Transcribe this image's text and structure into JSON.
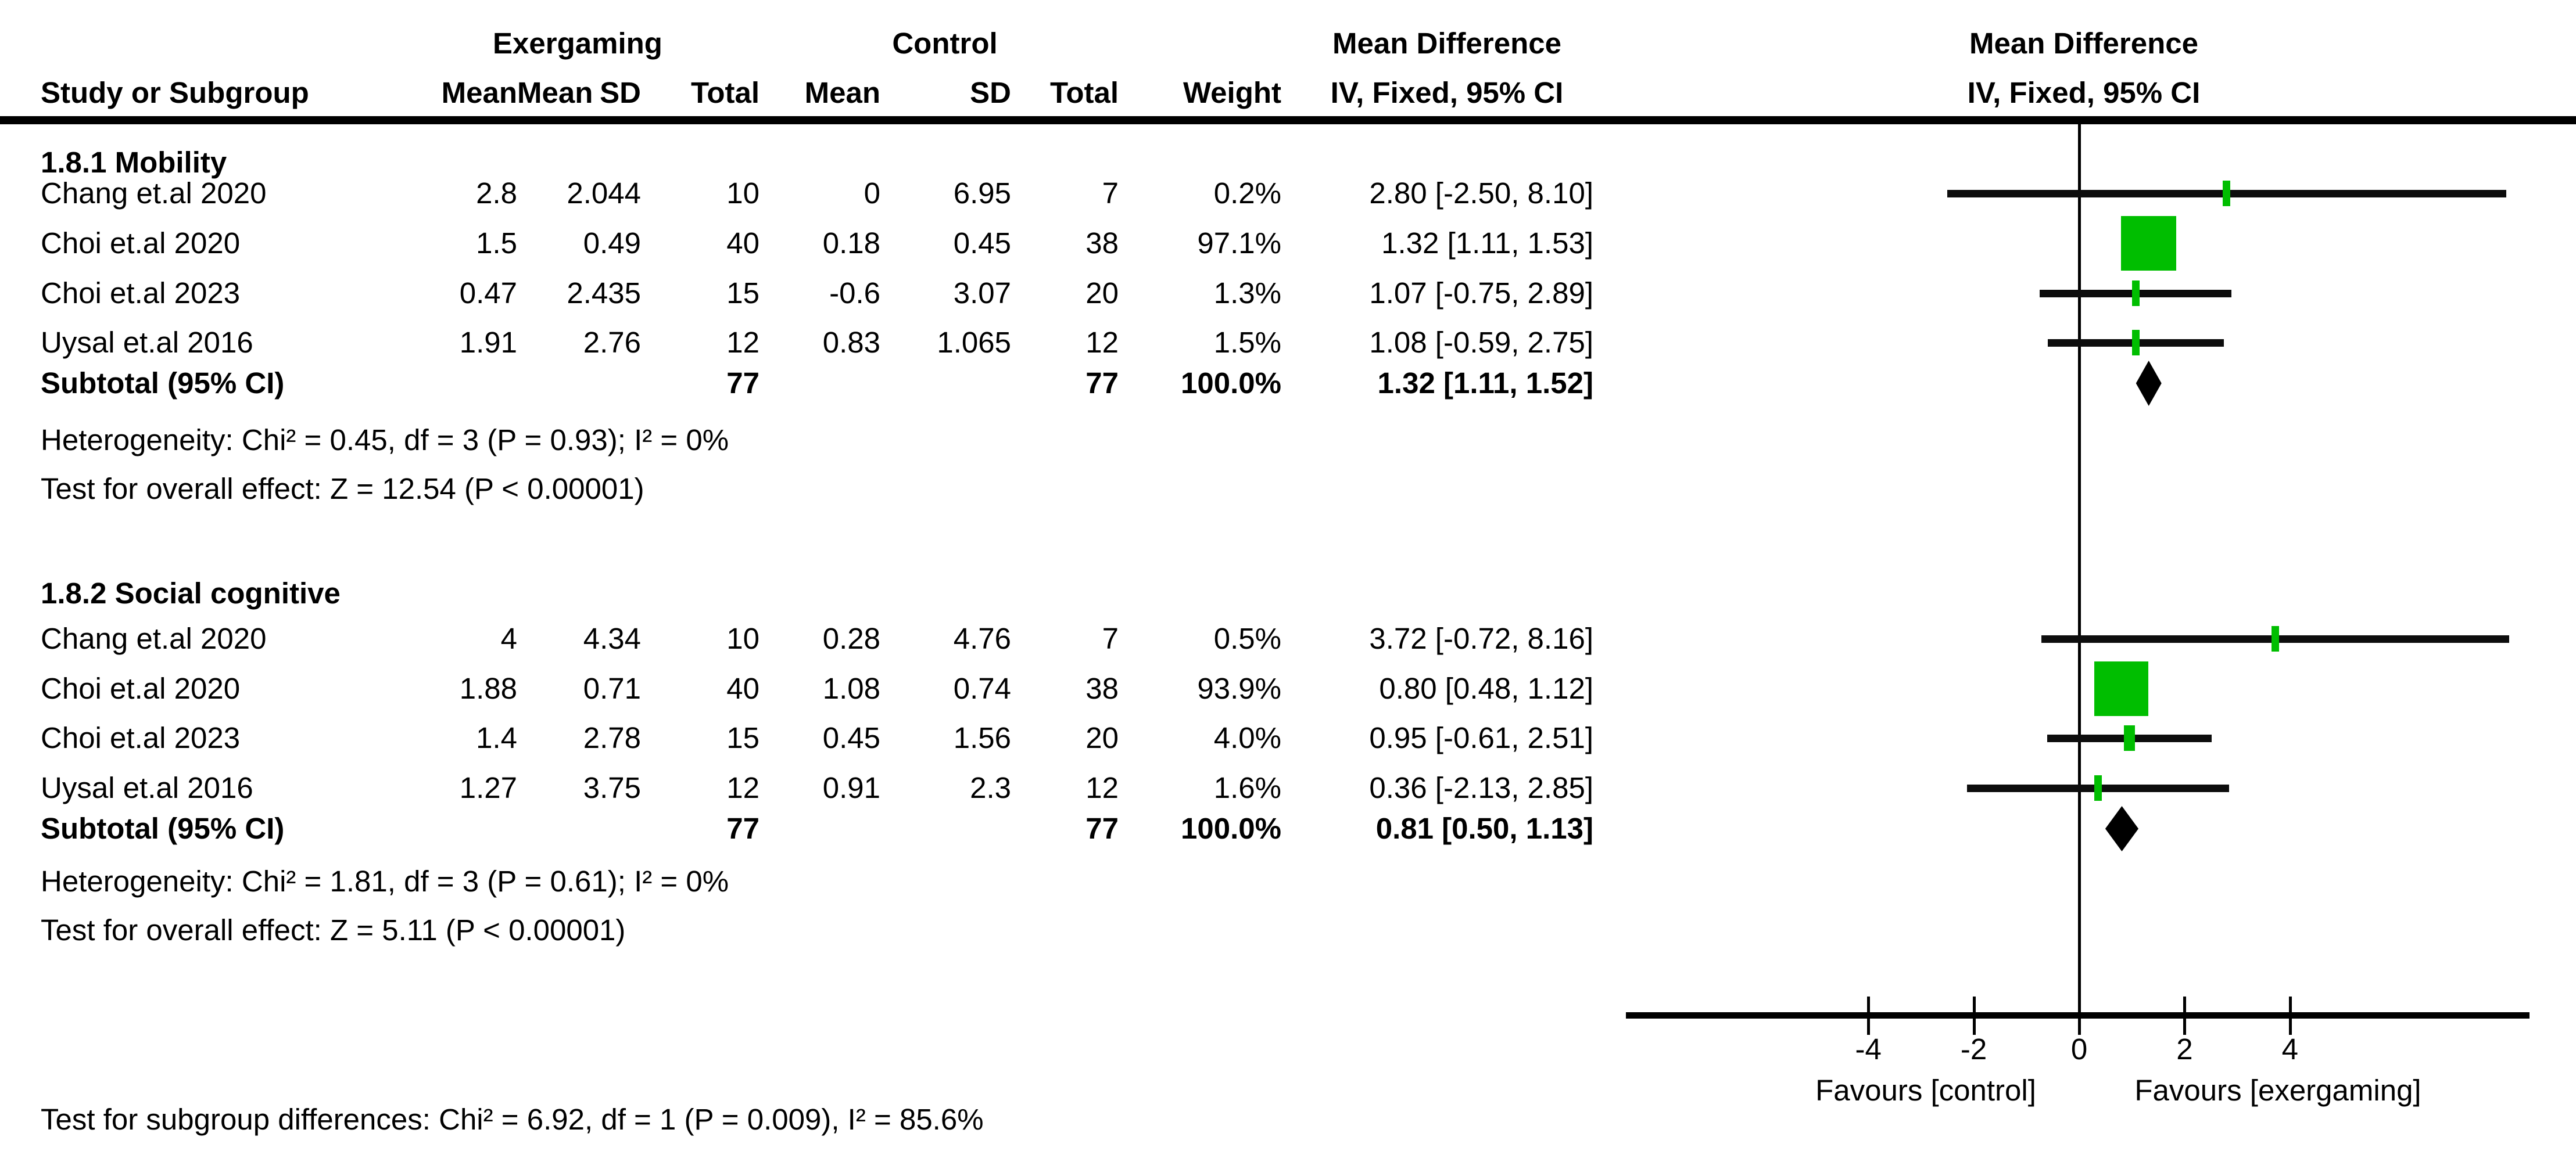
{
  "header": {
    "study": "Study or Subgroup",
    "exergaming_group": "Exergaming",
    "control_group": "Control",
    "mean": "Mean",
    "sd": "SD",
    "total": "Total",
    "weight": "Weight",
    "md_title": "Mean Difference",
    "md_method": "IV, Fixed, 95% CI"
  },
  "chart_data": {
    "type": "forest",
    "effect_measure": "Mean Difference",
    "model": "IV, Fixed, 95% CI",
    "axis": {
      "ticks": [
        -4,
        -2,
        0,
        2,
        4
      ],
      "min": -8.6,
      "max": 8.5,
      "favours_left": "Favours [control]",
      "favours_right": "Favours [exergaming]"
    },
    "marker_color": "#00be00",
    "subgroups": [
      {
        "title": "1.8.1 Mobility",
        "studies": [
          {
            "name": "Chang et.al 2020",
            "mean1": "2.8",
            "sd1": "2.044",
            "n1": "10",
            "mean2": "0",
            "sd2": "6.95",
            "n2": "7",
            "weight": "0.2%",
            "ci_text": "2.80 [-2.50, 8.10]",
            "est": 2.8,
            "lo": -2.5,
            "hi": 8.1,
            "weight_pct": 0.2
          },
          {
            "name": "Choi et.al 2020",
            "mean1": "1.5",
            "sd1": "0.49",
            "n1": "40",
            "mean2": "0.18",
            "sd2": "0.45",
            "n2": "38",
            "weight": "97.1%",
            "ci_text": "1.32 [1.11, 1.53]",
            "est": 1.32,
            "lo": 1.11,
            "hi": 1.53,
            "weight_pct": 97.1
          },
          {
            "name": "Choi et.al 2023",
            "mean1": "0.47",
            "sd1": "2.435",
            "n1": "15",
            "mean2": "-0.6",
            "sd2": "3.07",
            "n2": "20",
            "weight": "1.3%",
            "ci_text": "1.07 [-0.75, 2.89]",
            "est": 1.07,
            "lo": -0.75,
            "hi": 2.89,
            "weight_pct": 1.3
          },
          {
            "name": "Uysal et.al 2016",
            "mean1": "1.91",
            "sd1": "2.76",
            "n1": "12",
            "mean2": "0.83",
            "sd2": "1.065",
            "n2": "12",
            "weight": "1.5%",
            "ci_text": "1.08 [-0.59, 2.75]",
            "est": 1.08,
            "lo": -0.59,
            "hi": 2.75,
            "weight_pct": 1.5
          }
        ],
        "subtotal": {
          "label": "Subtotal (95% CI)",
          "n1": "77",
          "n2": "77",
          "weight": "100.0%",
          "ci_text": "1.32 [1.11, 1.52]",
          "est": 1.32,
          "lo": 1.11,
          "hi": 1.52
        },
        "heterogeneity": "Heterogeneity: Chi² = 0.45, df = 3 (P = 0.93); I² = 0%",
        "overall_effect": "Test for overall effect: Z = 12.54 (P < 0.00001)"
      },
      {
        "title": "1.8.2 Social cognitive",
        "studies": [
          {
            "name": "Chang et.al 2020",
            "mean1": "4",
            "sd1": "4.34",
            "n1": "10",
            "mean2": "0.28",
            "sd2": "4.76",
            "n2": "7",
            "weight": "0.5%",
            "ci_text": "3.72 [-0.72, 8.16]",
            "est": 3.72,
            "lo": -0.72,
            "hi": 8.16,
            "weight_pct": 0.5
          },
          {
            "name": "Choi et.al 2020",
            "mean1": "1.88",
            "sd1": "0.71",
            "n1": "40",
            "mean2": "1.08",
            "sd2": "0.74",
            "n2": "38",
            "weight": "93.9%",
            "ci_text": "0.80 [0.48, 1.12]",
            "est": 0.8,
            "lo": 0.48,
            "hi": 1.12,
            "weight_pct": 93.9
          },
          {
            "name": "Choi et.al 2023",
            "mean1": "1.4",
            "sd1": "2.78",
            "n1": "15",
            "mean2": "0.45",
            "sd2": "1.56",
            "n2": "20",
            "weight": "4.0%",
            "ci_text": "0.95 [-0.61, 2.51]",
            "est": 0.95,
            "lo": -0.61,
            "hi": 2.51,
            "weight_pct": 4.0
          },
          {
            "name": "Uysal et.al 2016",
            "mean1": "1.27",
            "sd1": "3.75",
            "n1": "12",
            "mean2": "0.91",
            "sd2": "2.3",
            "n2": "12",
            "weight": "1.6%",
            "ci_text": "0.36 [-2.13, 2.85]",
            "est": 0.36,
            "lo": -2.13,
            "hi": 2.85,
            "weight_pct": 1.6
          }
        ],
        "subtotal": {
          "label": "Subtotal (95% CI)",
          "n1": "77",
          "n2": "77",
          "weight": "100.0%",
          "ci_text": "0.81 [0.50, 1.13]",
          "est": 0.81,
          "lo": 0.5,
          "hi": 1.13
        },
        "heterogeneity": "Heterogeneity: Chi² = 1.81, df = 3 (P = 0.61); I² = 0%",
        "overall_effect": "Test for overall effect: Z = 5.11 (P < 0.00001)"
      }
    ],
    "subgroup_differences": "Test for subgroup differences: Chi² = 6.92, df = 1 (P = 0.009), I² = 85.6%"
  }
}
